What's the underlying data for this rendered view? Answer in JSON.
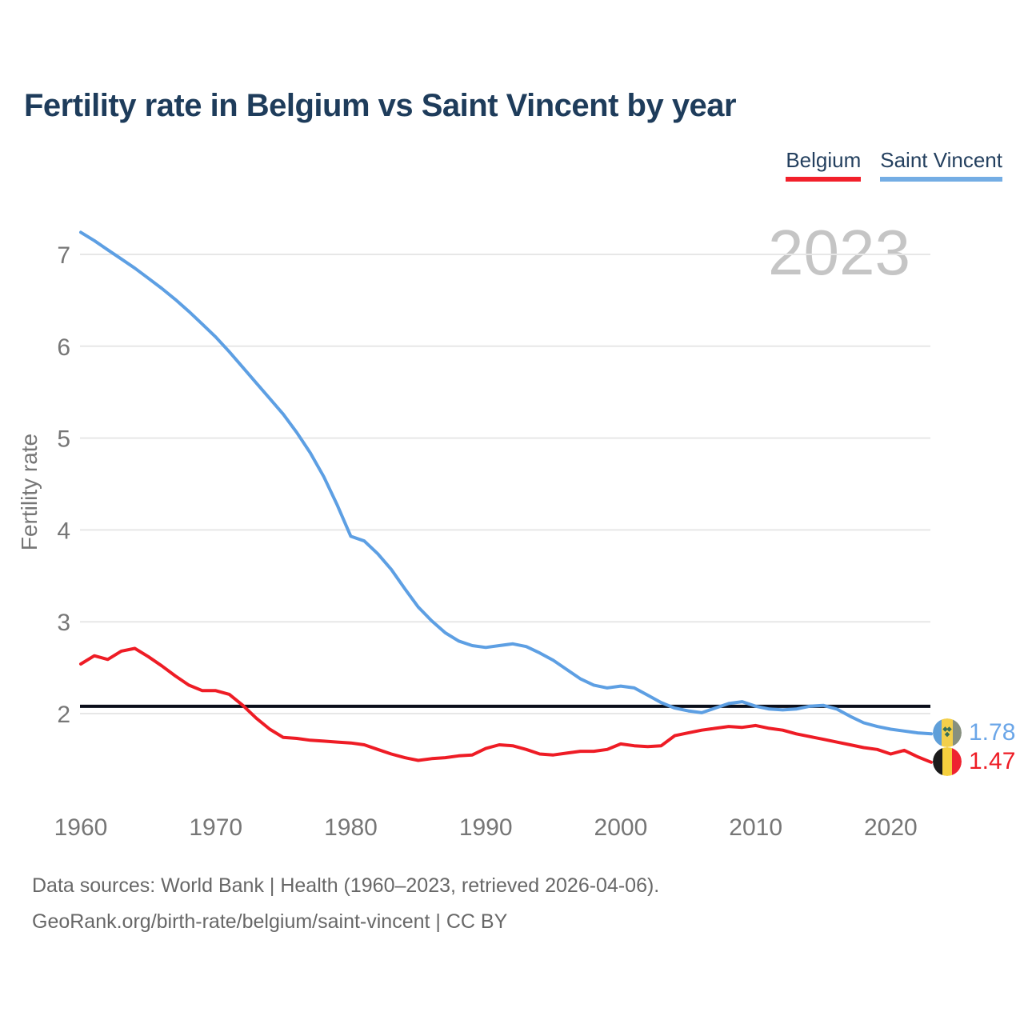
{
  "title": "Fertility rate in Belgium vs Saint Vincent by year",
  "watermark_year": "2023",
  "legend": [
    {
      "label": "Belgium",
      "color": "#f2202b"
    },
    {
      "label": "Saint Vincent",
      "color": "#74ade4"
    }
  ],
  "end_labels": [
    {
      "series": "Saint Vincent",
      "value": "1.78",
      "color": "#6ba6e8",
      "flag_icon": "saint-vincent-flag-icon"
    },
    {
      "series": "Belgium",
      "value": "1.47",
      "color": "#ee1c25",
      "flag_icon": "belgium-flag-icon"
    }
  ],
  "footer": {
    "line1": "Data sources: World Bank | Health (1960–2023, retrieved 2026-04-06).",
    "line2": "GeoRank.org/birth-rate/belgium/saint-vincent | CC BY"
  },
  "chart_data": {
    "type": "line",
    "title": "Fertility rate in Belgium vs Saint Vincent by year",
    "xlabel": "",
    "ylabel": "Fertility rate",
    "x_range": [
      1960,
      2023
    ],
    "x_ticks": [
      1960,
      1970,
      1980,
      1990,
      2000,
      2010,
      2020
    ],
    "y_ticks": [
      2,
      3,
      4,
      5,
      6,
      7
    ],
    "ylim": [
      1.3,
      7.45
    ],
    "grid": true,
    "legend_position": "top-right",
    "baseline": {
      "value": 2.08,
      "color": "#0a0e1a",
      "name": "replacement-level"
    },
    "series": [
      {
        "name": "Saint Vincent",
        "color": "#5d9fe3",
        "values": [
          7.24,
          7.15,
          7.05,
          6.95,
          6.85,
          6.74,
          6.63,
          6.51,
          6.38,
          6.24,
          6.1,
          5.94,
          5.77,
          5.6,
          5.43,
          5.26,
          5.06,
          4.84,
          4.58,
          4.27,
          3.93,
          3.88,
          3.74,
          3.57,
          3.36,
          3.16,
          3.01,
          2.88,
          2.79,
          2.74,
          2.72,
          2.74,
          2.76,
          2.73,
          2.66,
          2.58,
          2.48,
          2.38,
          2.31,
          2.28,
          2.3,
          2.28,
          2.2,
          2.12,
          2.06,
          2.03,
          2.01,
          2.06,
          2.11,
          2.13,
          2.08,
          2.05,
          2.04,
          2.05,
          2.08,
          2.09,
          2.05,
          1.97,
          1.9,
          1.86,
          1.83,
          1.81,
          1.79,
          1.78
        ]
      },
      {
        "name": "Belgium",
        "color": "#ee1c25",
        "values": [
          2.54,
          2.63,
          2.59,
          2.68,
          2.71,
          2.62,
          2.52,
          2.41,
          2.31,
          2.25,
          2.25,
          2.21,
          2.09,
          1.95,
          1.83,
          1.74,
          1.73,
          1.71,
          1.7,
          1.69,
          1.68,
          1.66,
          1.61,
          1.56,
          1.52,
          1.49,
          1.51,
          1.52,
          1.54,
          1.55,
          1.62,
          1.66,
          1.65,
          1.61,
          1.56,
          1.55,
          1.57,
          1.59,
          1.59,
          1.61,
          1.67,
          1.65,
          1.64,
          1.65,
          1.76,
          1.79,
          1.82,
          1.84,
          1.86,
          1.85,
          1.87,
          1.84,
          1.82,
          1.78,
          1.75,
          1.72,
          1.69,
          1.66,
          1.63,
          1.61,
          1.56,
          1.6,
          1.53,
          1.47
        ]
      }
    ]
  }
}
